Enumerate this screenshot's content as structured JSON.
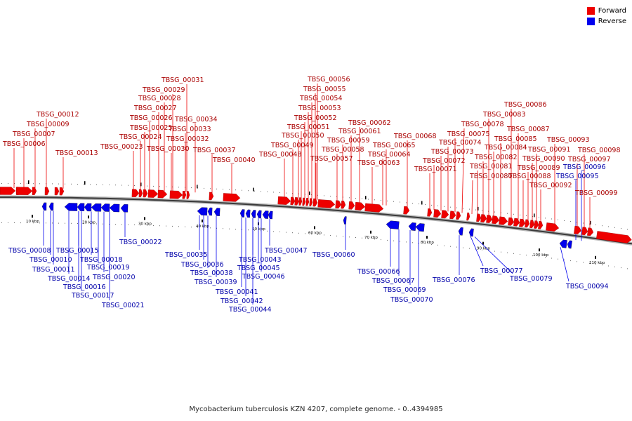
{
  "legend": {
    "forward_label": "Forward",
    "forward_color": "#ee0000",
    "reverse_label": "Reverse",
    "reverse_color": "#0000ee"
  },
  "caption": "Mycobacterium tuberculosis KZN 4207, complete genome. - 0..4394985",
  "scale_labels": [
    "10 kbp",
    "20 kbp",
    "30 kbp",
    "40 kbp",
    "50 kbp",
    "60 kbp",
    "70 kbp",
    "80 kbp",
    "90 kbp",
    "100 kbp",
    "110 kbp"
  ],
  "forward_genes": [
    "TBSG_00006",
    "TBSG_00007",
    "TBSG_00009",
    "TBSG_00012",
    "TBSG_00013",
    "TBSG_00023",
    "TBSG_00024",
    "TBSG_00025",
    "TBSG_00026",
    "TBSG_00027",
    "TBSG_00028",
    "TBSG_00029",
    "TBSG_00030",
    "TBSG_00031",
    "TBSG_00032",
    "TBSG_00033",
    "TBSG_00034",
    "TBSG_00037",
    "TBSG_00040",
    "TBSG_00048",
    "TBSG_00049",
    "TBSG_00050",
    "TBSG_00051",
    "TBSG_00052",
    "TBSG_00053",
    "TBSG_00054",
    "TBSG_00055",
    "TBSG_00056",
    "TBSG_00057",
    "TBSG_00058",
    "TBSG_00059",
    "TBSG_00061",
    "TBSG_00062",
    "TBSG_00063",
    "TBSG_00064",
    "TBSG_00065",
    "TBSG_00068",
    "TBSG_00071",
    "TBSG_00072",
    "TBSG_00073",
    "TBSG_00074",
    "TBSG_00075",
    "TBSG_00078",
    "TBSG_00080",
    "TBSG_00081",
    "TBSG_00082",
    "TBSG_00083",
    "TBSG_00084",
    "TBSG_00085",
    "TBSG_00086",
    "TBSG_00087",
    "TBSG_00088",
    "TBSG_00089",
    "TBSG_00090",
    "TBSG_00091",
    "TBSG_00092",
    "TBSG_00093",
    "TBSG_00097",
    "TBSG_00098",
    "TBSG_00099"
  ],
  "reverse_genes": [
    "TBSG_00008",
    "TBSG_00010",
    "TBSG_00011",
    "TBSG_00014",
    "TBSG_00015",
    "TBSG_00016",
    "TBSG_00017",
    "TBSG_00018",
    "TBSG_00019",
    "TBSG_00020",
    "TBSG_00021",
    "TBSG_00022",
    "TBSG_00035",
    "TBSG_00036",
    "TBSG_00038",
    "TBSG_00039",
    "TBSG_00041",
    "TBSG_00042",
    "TBSG_00043",
    "TBSG_00044",
    "TBSG_00045",
    "TBSG_00046",
    "TBSG_00047",
    "TBSG_00060",
    "TBSG_00066",
    "TBSG_00067",
    "TBSG_00069",
    "TBSG_00070",
    "TBSG_00076",
    "TBSG_00077",
    "TBSG_00079",
    "TBSG_00094",
    "TBSG_00095",
    "TBSG_00096"
  ]
}
